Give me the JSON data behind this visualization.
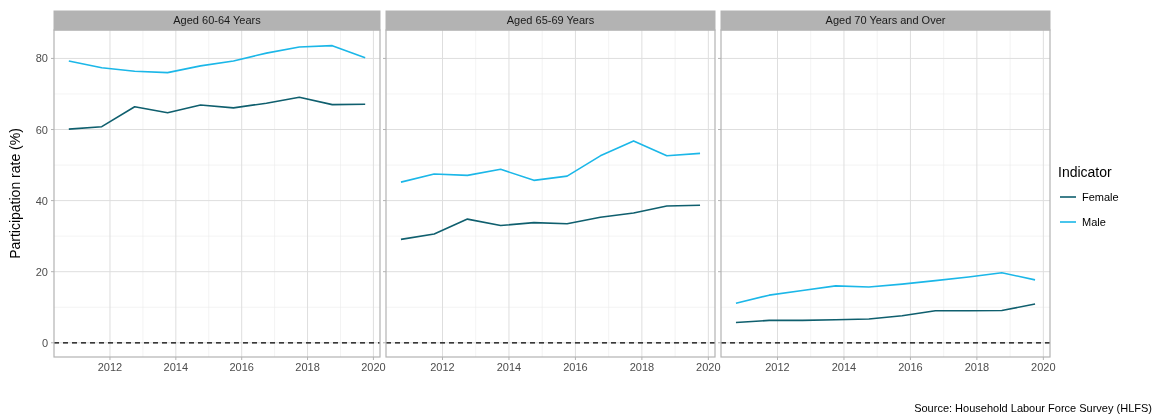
{
  "chart_data": [
    {
      "type": "line",
      "title": "Aged 60-64 Years",
      "ylabel": "Participation rate (%)",
      "x": [
        2010.75,
        2011.75,
        2012.75,
        2013.75,
        2014.75,
        2015.75,
        2016.75,
        2017.75,
        2018.75,
        2019.75
      ],
      "xlim": [
        2010.3,
        2020.2
      ],
      "xticks": [
        2012,
        2014,
        2016,
        2018,
        2020
      ],
      "ylim": [
        -4,
        88
      ],
      "yticks": [
        0,
        20,
        40,
        60,
        80
      ],
      "grid": true,
      "ref_lines": [
        {
          "axis": "y",
          "value": 0,
          "color": "#000000",
          "line_style": "dashed"
        }
      ],
      "series": [
        {
          "color": "#0f5f6e",
          "values": [
            60.1,
            60.8,
            66.4,
            64.7,
            66.9,
            66.1,
            67.4,
            69.1,
            67.0,
            67.1
          ]
        },
        {
          "color": "#1bb7e8",
          "values": [
            79.3,
            77.4,
            76.4,
            76.0,
            77.9,
            79.3,
            81.5,
            83.2,
            83.6,
            80.2
          ]
        }
      ]
    },
    {
      "type": "line",
      "title": "Aged 65-69 Years",
      "x": [
        2010.75,
        2011.75,
        2012.75,
        2013.75,
        2014.75,
        2015.75,
        2016.75,
        2017.75,
        2018.75,
        2019.75
      ],
      "xlim": [
        2010.3,
        2020.2
      ],
      "xticks": [
        2012,
        2014,
        2016,
        2018,
        2020
      ],
      "ylim": [
        -4,
        88
      ],
      "yticks": [
        0,
        20,
        40,
        60,
        80
      ],
      "tick_labels": "x",
      "grid": true,
      "ref_lines": [
        {
          "axis": "y",
          "value": 0,
          "color": "#000000",
          "line_style": "dashed"
        }
      ],
      "series": [
        {
          "color": "#0f5f6e",
          "values": [
            29.1,
            30.6,
            34.8,
            33.0,
            33.8,
            33.5,
            35.3,
            36.5,
            38.5,
            38.7
          ]
        },
        {
          "color": "#1bb7e8",
          "values": [
            45.2,
            47.5,
            47.1,
            48.8,
            45.7,
            46.9,
            52.6,
            56.8,
            52.6,
            53.3
          ]
        }
      ]
    },
    {
      "type": "line",
      "title": "Aged 70 Years and Over",
      "x": [
        2010.75,
        2011.75,
        2012.75,
        2013.75,
        2014.75,
        2015.75,
        2016.75,
        2017.75,
        2018.75,
        2019.75
      ],
      "xlim": [
        2010.3,
        2020.2
      ],
      "xticks": [
        2012,
        2014,
        2016,
        2018,
        2020
      ],
      "ylim": [
        -4,
        88
      ],
      "yticks": [
        0,
        20,
        40,
        60,
        80
      ],
      "tick_labels": "x",
      "grid": true,
      "legend": "right",
      "legend_title": "Indicator",
      "annotations": [
        "Source: Household Labour Force Survey (HLFS)"
      ],
      "ref_lines": [
        {
          "axis": "y",
          "value": 0,
          "color": "#000000",
          "line_style": "dashed"
        }
      ],
      "series": [
        {
          "name": "Female",
          "color": "#0f5f6e",
          "values": [
            5.7,
            6.3,
            6.3,
            6.5,
            6.7,
            7.6,
            9.0,
            9.0,
            9.1,
            10.9
          ]
        },
        {
          "name": "Male",
          "color": "#1bb7e8",
          "values": [
            11.1,
            13.4,
            14.7,
            16.0,
            15.7,
            16.5,
            17.5,
            18.5,
            19.7,
            17.7
          ]
        }
      ]
    }
  ]
}
